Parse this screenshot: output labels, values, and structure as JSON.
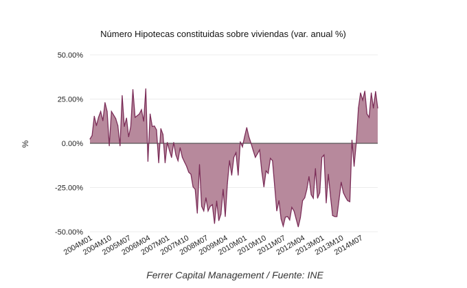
{
  "chart_data": {
    "type": "area",
    "title": "Número Hipotecas constituidas sobre viviendas (var. anual %)",
    "xlabel": "",
    "ylabel": "%",
    "footer": "Ferrer Capital Management / Fuente: INE",
    "ylim": [
      -50,
      50
    ],
    "y_ticks": [
      50,
      25,
      0,
      -25,
      -50
    ],
    "y_tick_labels": [
      "50.00%",
      "25.00%",
      "0.00%",
      "-25.00%",
      "-50.00%"
    ],
    "x_tick_labels": [
      "2004M01",
      "2004M10",
      "2005M07",
      "2006M04",
      "2007M01",
      "2007M10",
      "2008M07",
      "2009M04",
      "2010M01",
      "2010M10",
      "2011M07",
      "2012M04",
      "2013M01",
      "2013M10",
      "2014M07"
    ],
    "grid": true,
    "legend": "none",
    "colors": {
      "line": "#7b2d58",
      "fill": "#b7899c",
      "zero_line": "#555555",
      "grid": "#ececec"
    },
    "x": [
      "2004M01",
      "2004M02",
      "2004M03",
      "2004M04",
      "2004M05",
      "2004M06",
      "2004M07",
      "2004M08",
      "2004M09",
      "2004M10",
      "2004M11",
      "2004M12",
      "2005M01",
      "2005M02",
      "2005M03",
      "2005M04",
      "2005M05",
      "2005M06",
      "2005M07",
      "2005M08",
      "2005M09",
      "2005M10",
      "2005M11",
      "2005M12",
      "2006M01",
      "2006M02",
      "2006M03",
      "2006M04",
      "2006M05",
      "2006M06",
      "2006M07",
      "2006M08",
      "2006M09",
      "2006M10",
      "2006M11",
      "2006M12",
      "2007M01",
      "2007M02",
      "2007M03",
      "2007M04",
      "2007M05",
      "2007M06",
      "2007M07",
      "2007M08",
      "2007M09",
      "2007M10",
      "2007M11",
      "2007M12",
      "2008M01",
      "2008M02",
      "2008M03",
      "2008M04",
      "2008M05",
      "2008M06",
      "2008M07",
      "2008M08",
      "2008M09",
      "2008M10",
      "2008M11",
      "2008M12",
      "2009M01",
      "2009M02",
      "2009M03",
      "2009M04",
      "2009M05",
      "2009M06",
      "2009M07",
      "2009M08",
      "2009M09",
      "2009M10",
      "2009M11",
      "2009M12",
      "2010M01",
      "2010M02",
      "2010M03",
      "2010M04",
      "2010M05",
      "2010M06",
      "2010M07",
      "2010M08",
      "2010M09",
      "2010M10",
      "2010M11",
      "2010M12",
      "2011M01",
      "2011M02",
      "2011M03",
      "2011M04",
      "2011M05",
      "2011M06",
      "2011M07",
      "2011M08",
      "2011M09",
      "2011M10",
      "2011M11",
      "2011M12",
      "2012M01",
      "2012M02",
      "2012M03",
      "2012M04",
      "2012M05",
      "2012M06",
      "2012M07",
      "2012M08",
      "2012M09",
      "2012M10",
      "2012M11",
      "2012M12",
      "2013M01",
      "2013M02",
      "2013M03",
      "2013M04",
      "2013M05",
      "2013M06",
      "2013M07",
      "2013M08",
      "2013M09",
      "2013M10",
      "2013M11",
      "2013M12",
      "2014M01",
      "2014M02",
      "2014M03",
      "2014M04",
      "2014M05",
      "2014M06",
      "2014M07",
      "2014M08",
      "2014M09",
      "2014M10",
      "2014M11",
      "2014M12",
      "2015M01",
      "2015M02",
      "2015M03"
    ],
    "values": [
      2.4,
      4.4,
      15.3,
      10,
      14.7,
      18,
      12.8,
      23,
      18,
      -1.4,
      18,
      16,
      14,
      10,
      -1.4,
      27,
      9.5,
      14.3,
      3.7,
      9.5,
      30.4,
      14.7,
      15.6,
      16.6,
      19,
      12.5,
      30.8,
      -10.2,
      16.6,
      9.5,
      9.8,
      7.6,
      -11,
      8.3,
      5,
      -11,
      0.5,
      -4,
      -8,
      0.5,
      -6.6,
      -9.8,
      -2.5,
      -7.9,
      -10.5,
      -13,
      -16.3,
      -17.5,
      -24.6,
      -26,
      -39.5,
      -12,
      -35.6,
      -38.2,
      -30.8,
      -38.2,
      -35.6,
      -34.7,
      -45.3,
      -32.6,
      -43.7,
      -40,
      -26,
      -41.4,
      -22.7,
      -9.8,
      -18,
      -7.9,
      -5.3,
      -18,
      0.9,
      -2,
      3.7,
      8.9,
      3.7,
      0,
      -4,
      -7.9,
      -5.9,
      -3.7,
      -15.6,
      -24.6,
      -15.6,
      -17,
      -8.5,
      -9.8,
      -24,
      -38.2,
      -32.4,
      -42.7,
      -46.8,
      -41.7,
      -41.4,
      -43.3,
      -36.2,
      -38.2,
      -42.7,
      -47.2,
      -42,
      -32.4,
      -30.8,
      -26,
      -18.8,
      -29,
      -31,
      -14.3,
      -31,
      -27.9,
      -7.9,
      -6.6,
      -33.7,
      -17.5,
      -29.8,
      -40.8,
      -41.4,
      -41.4,
      -31.7,
      -22,
      -27.9,
      -30.4,
      -32.4,
      -33,
      1.8,
      -13,
      0,
      19.9,
      28.5,
      24.4,
      29.5,
      16.6,
      14.7,
      28.5,
      19.9,
      29.3,
      19.9
    ]
  }
}
